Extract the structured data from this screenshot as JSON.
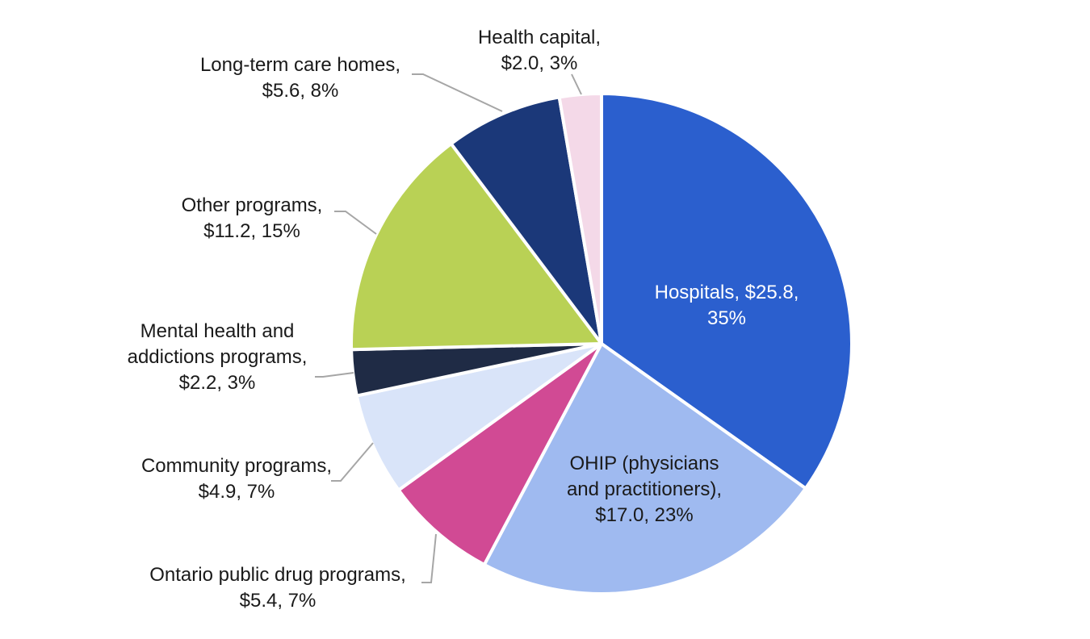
{
  "chart_data": {
    "type": "pie",
    "title": "",
    "unit": "$ billions",
    "start_angle_deg": 0,
    "direction": "clockwise",
    "slices": [
      {
        "name": "Hospitals",
        "value": 25.8,
        "percent": 35,
        "color": "#2b5fce",
        "label_lines": [
          "Hospitals, $25.8,",
          "35%"
        ],
        "label_position": "inside",
        "text_color": "#ffffff"
      },
      {
        "name": "OHIP (physicians and practitioners)",
        "value": 17.0,
        "percent": 23,
        "color": "#9fbaf0",
        "label_lines": [
          "OHIP (physicians",
          "and practitioners),",
          "$17.0, 23%"
        ],
        "label_position": "inside",
        "text_color": "#1a1a1a"
      },
      {
        "name": "Ontario public drug programs",
        "value": 5.4,
        "percent": 7,
        "color": "#d14a94",
        "label_lines": [
          "Ontario public drug programs,",
          "$5.4, 7%"
        ],
        "label_position": "outside-bottom-left",
        "text_color": "#1a1a1a"
      },
      {
        "name": "Community programs",
        "value": 4.9,
        "percent": 7,
        "color": "#d9e4f9",
        "label_lines": [
          "Community programs,",
          "$4.9, 7%"
        ],
        "label_position": "outside-left",
        "text_color": "#1a1a1a"
      },
      {
        "name": "Mental health and addictions programs",
        "value": 2.2,
        "percent": 3,
        "color": "#1f2b45",
        "label_lines": [
          "Mental health and",
          "addictions programs,",
          "$2.2, 3%"
        ],
        "label_position": "outside-left",
        "text_color": "#1a1a1a"
      },
      {
        "name": "Other programs",
        "value": 11.2,
        "percent": 15,
        "color": "#b9d155",
        "label_lines": [
          "Other programs,",
          "$11.2, 15%"
        ],
        "label_position": "outside-left",
        "text_color": "#1a1a1a"
      },
      {
        "name": "Long-term care homes",
        "value": 5.6,
        "percent": 8,
        "color": "#1b3879",
        "label_lines": [
          "Long-term care homes,",
          "$5.6, 8%"
        ],
        "label_position": "outside-top-left",
        "text_color": "#1a1a1a"
      },
      {
        "name": "Health capital",
        "value": 2.0,
        "percent": 3,
        "color": "#f4d9e8",
        "label_lines": [
          "Health capital,",
          "$2.0, 3%"
        ],
        "label_position": "outside-top",
        "text_color": "#1a1a1a"
      }
    ]
  }
}
